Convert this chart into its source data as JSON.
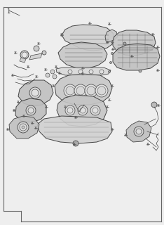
{
  "fig_width": 2.34,
  "fig_height": 3.2,
  "dpi": 100,
  "bg_color": "#eeeeee",
  "border_color": "#666666",
  "line_color": "#444444",
  "part_color": "#cccccc",
  "part_edge_color": "#333333"
}
